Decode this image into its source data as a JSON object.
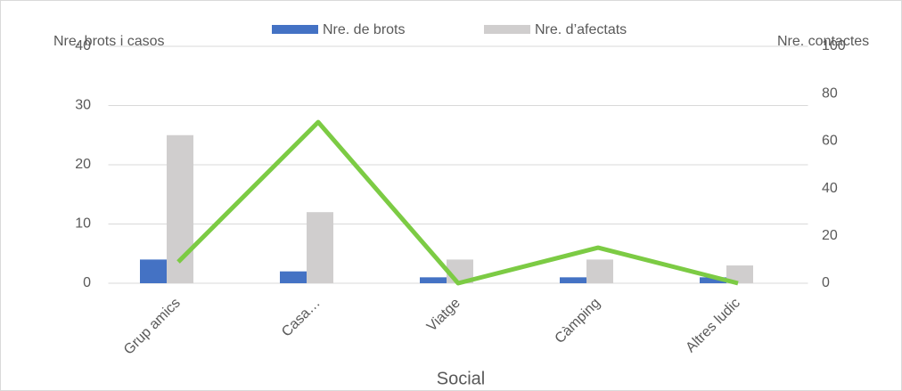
{
  "chart_data": {
    "type": "bar",
    "x_label": "Social",
    "y_label": "Nre. brots i casos",
    "y2_label": "Nre. contactes",
    "categories": [
      "Grup amics",
      "Casa…",
      "Viatge",
      "Càmping",
      "Altres ludic"
    ],
    "series": [
      {
        "name": "Nre. de brots",
        "color": "#4472c4",
        "values": [
          4,
          2,
          1,
          1,
          1
        ]
      },
      {
        "name": "Nre. d’afectats",
        "color": "#d0cece",
        "values": [
          25,
          12,
          4,
          4,
          3
        ]
      },
      {
        "type": "line",
        "axis": "y2",
        "color": "#7ccb44",
        "values": [
          9,
          68,
          0,
          15,
          0
        ]
      }
    ],
    "ylim": [
      0,
      40
    ],
    "yticks": [
      0,
      10,
      20,
      30,
      40
    ],
    "y2lim": [
      0,
      100
    ],
    "y2ticks": [
      0,
      20,
      40,
      60,
      80,
      100
    ],
    "grid": true,
    "legend": "top"
  }
}
